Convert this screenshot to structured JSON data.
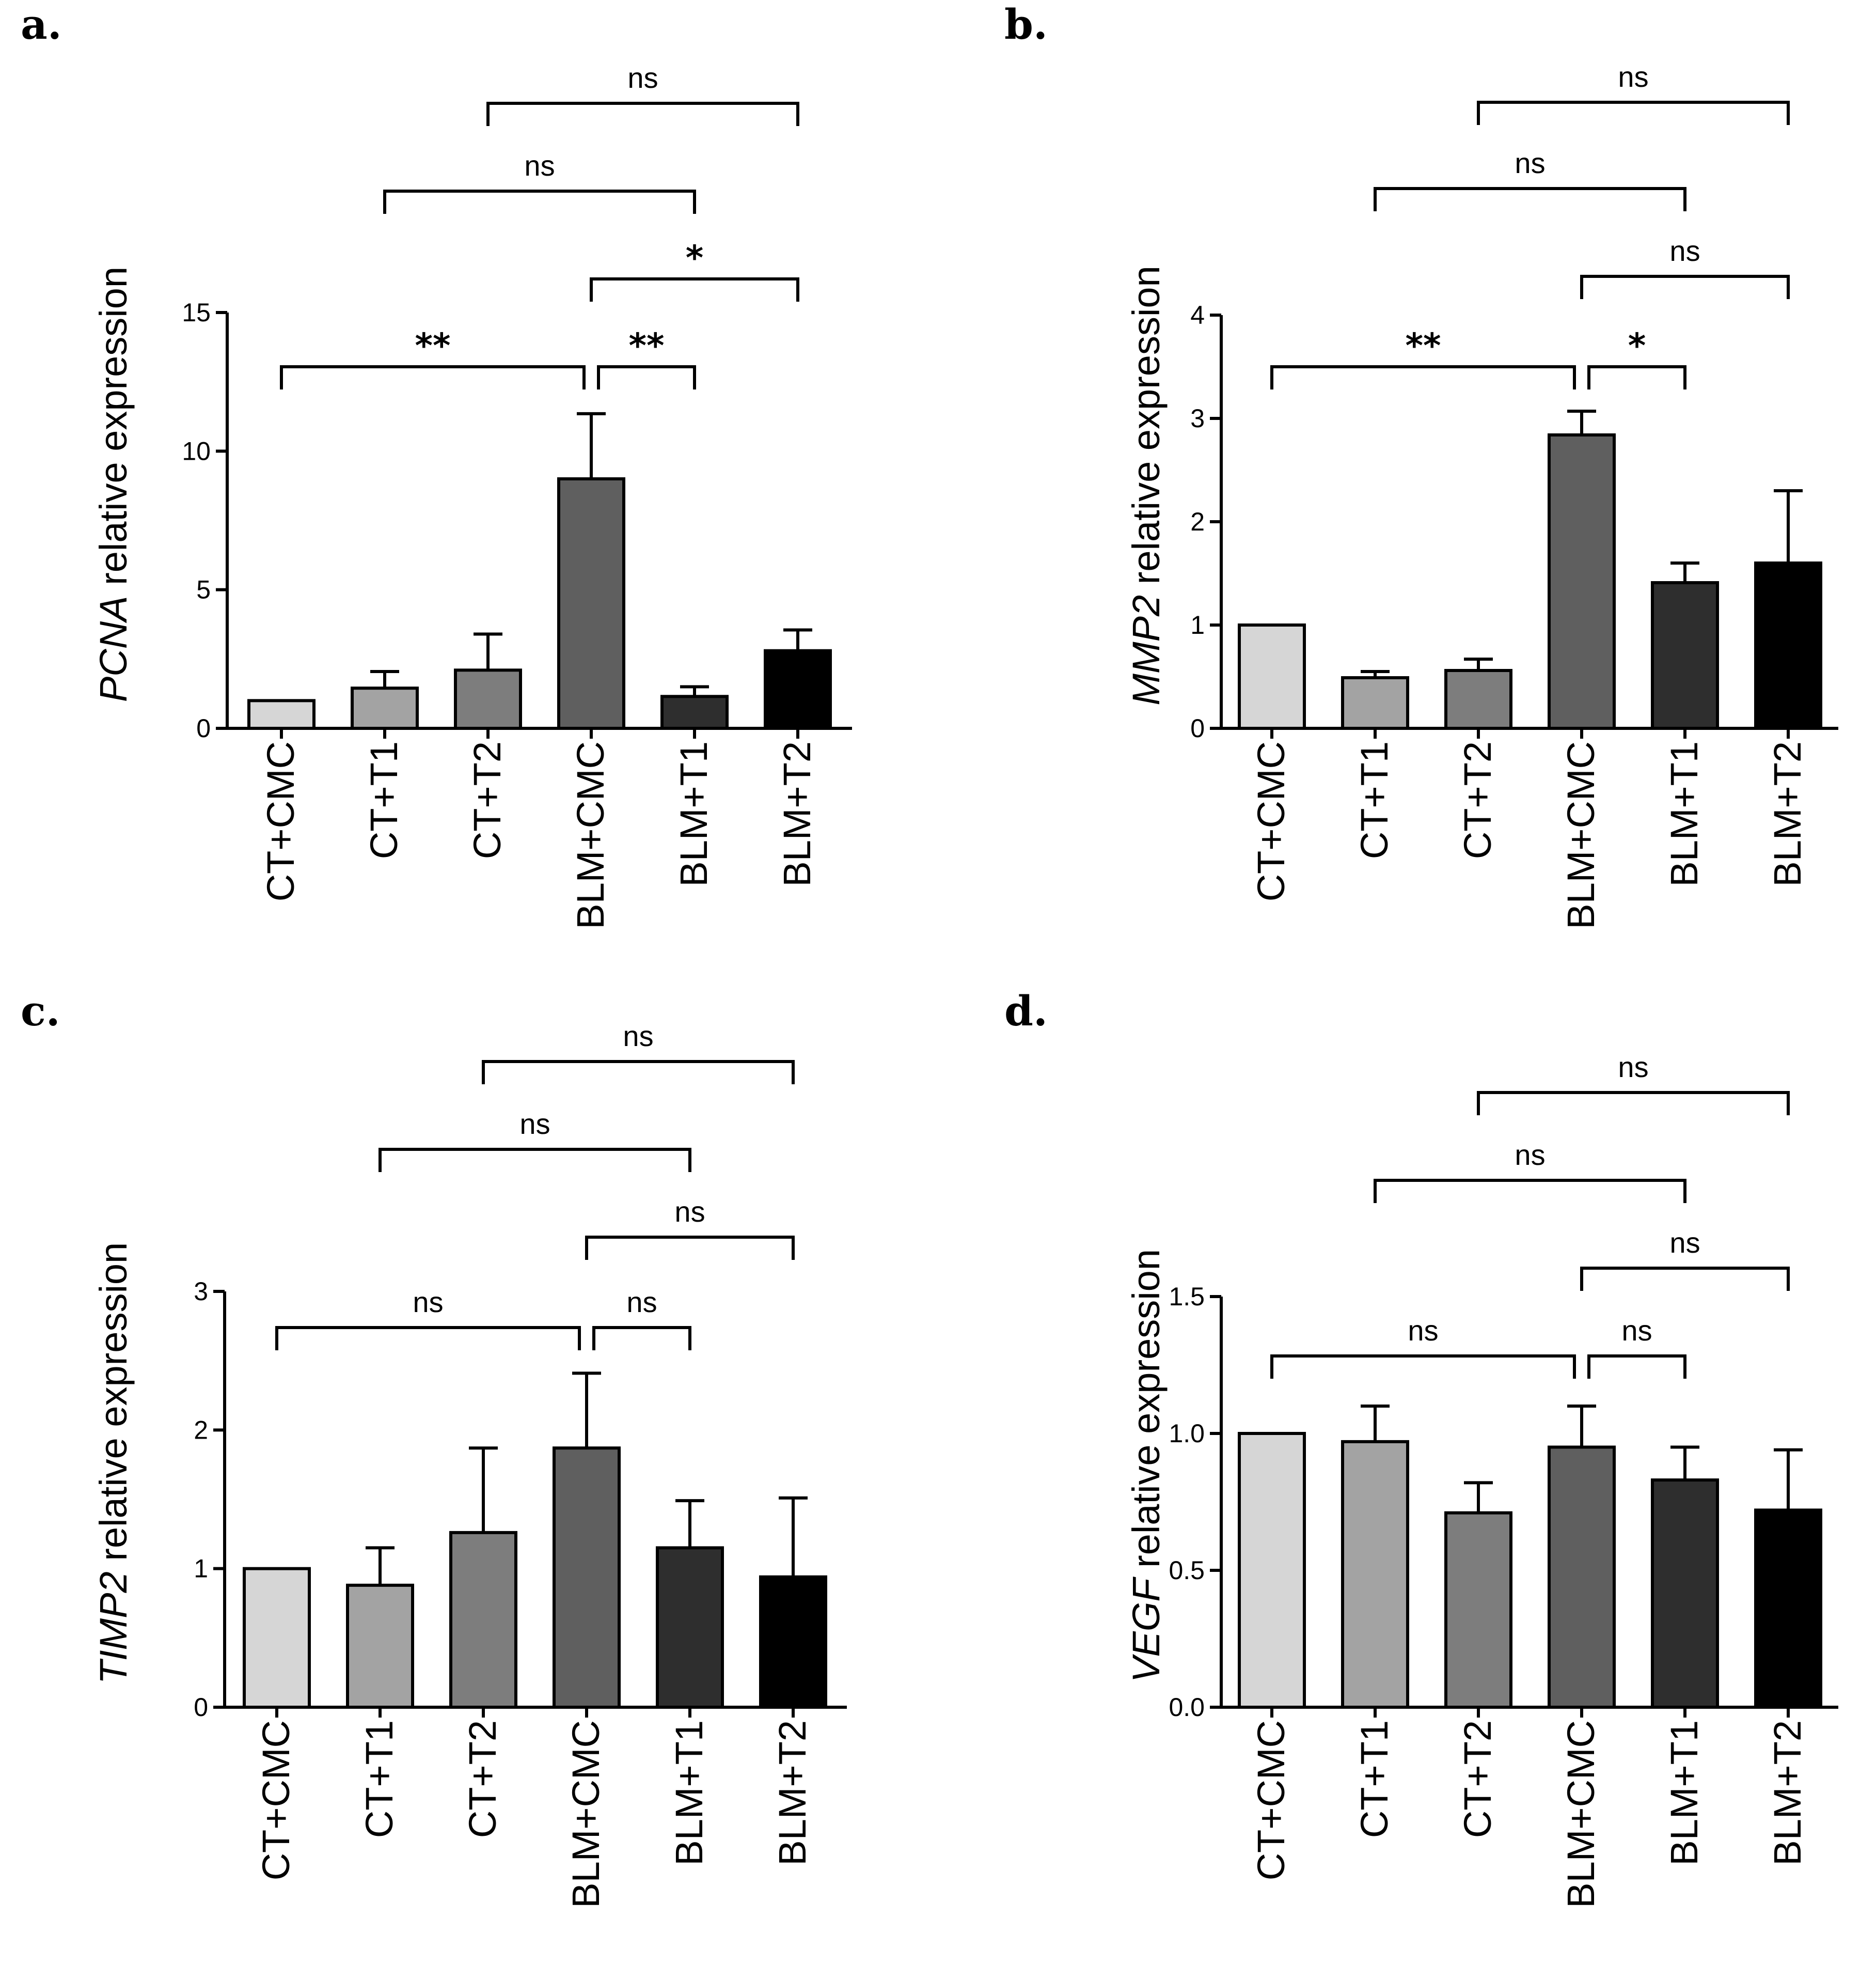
{
  "chart_data": [
    {
      "panel": "a.",
      "type": "bar",
      "gene": "PCNA",
      "ylabel_suffix": " relative expression",
      "categories": [
        "CT+CMC",
        "CT+T1",
        "CT+T2",
        "BLM+CMC",
        "BLM+T1",
        "BLM+T2"
      ],
      "values": [
        1.0,
        1.45,
        2.1,
        9.0,
        1.15,
        2.8
      ],
      "errors": [
        0,
        0.6,
        1.3,
        2.35,
        0.35,
        0.75
      ],
      "colors": [
        "#d6d6d6",
        "#a3a3a3",
        "#7d7d7d",
        "#5f5f5f",
        "#2e2e2e",
        "#000000"
      ],
      "ylim": [
        0,
        15
      ],
      "yticks": [
        "0",
        "5",
        "10",
        "15"
      ],
      "ytick_values": [
        0,
        5,
        10,
        15
      ],
      "comparisons": [
        {
          "from": 0,
          "to": 3,
          "label": "**"
        },
        {
          "from": 3,
          "to": 4,
          "label": "**"
        },
        {
          "from": 3,
          "to": 5,
          "label": "*"
        },
        {
          "from": 1,
          "to": 4,
          "label": "ns"
        },
        {
          "from": 2,
          "to": 5,
          "label": "ns"
        }
      ]
    },
    {
      "panel": "b.",
      "type": "bar",
      "gene": "MMP2",
      "ylabel_suffix": " relative expression",
      "categories": [
        "CT+CMC",
        "CT+T1",
        "CT+T2",
        "BLM+CMC",
        "BLM+T1",
        "BLM+T2"
      ],
      "values": [
        1.0,
        0.49,
        0.56,
        2.84,
        1.41,
        1.6
      ],
      "errors": [
        0,
        0.06,
        0.11,
        0.23,
        0.19,
        0.7
      ],
      "colors": [
        "#d6d6d6",
        "#a3a3a3",
        "#7d7d7d",
        "#5f5f5f",
        "#2e2e2e",
        "#000000"
      ],
      "ylim": [
        0,
        4
      ],
      "yticks": [
        "0",
        "1",
        "2",
        "3",
        "4"
      ],
      "ytick_values": [
        0,
        1,
        2,
        3,
        4
      ],
      "comparisons": [
        {
          "from": 0,
          "to": 3,
          "label": "**"
        },
        {
          "from": 3,
          "to": 4,
          "label": "*"
        },
        {
          "from": 3,
          "to": 5,
          "label": "ns"
        },
        {
          "from": 1,
          "to": 4,
          "label": "ns"
        },
        {
          "from": 2,
          "to": 5,
          "label": "ns"
        }
      ]
    },
    {
      "panel": "c.",
      "type": "bar",
      "gene": "TIMP2",
      "ylabel_suffix": " relative expression",
      "categories": [
        "CT+CMC",
        "CT+T1",
        "CT+T2",
        "BLM+CMC",
        "BLM+T1",
        "BLM+T2"
      ],
      "values": [
        1.0,
        0.88,
        1.26,
        1.87,
        1.15,
        0.94
      ],
      "errors": [
        0,
        0.27,
        0.61,
        0.54,
        0.34,
        0.57
      ],
      "colors": [
        "#d6d6d6",
        "#a3a3a3",
        "#7d7d7d",
        "#5f5f5f",
        "#2e2e2e",
        "#000000"
      ],
      "ylim": [
        0,
        3
      ],
      "yticks": [
        "0",
        "1",
        "2",
        "3"
      ],
      "ytick_values": [
        0,
        1,
        2,
        3
      ],
      "comparisons": [
        {
          "from": 0,
          "to": 3,
          "label": "ns"
        },
        {
          "from": 3,
          "to": 4,
          "label": "ns"
        },
        {
          "from": 3,
          "to": 5,
          "label": "ns"
        },
        {
          "from": 1,
          "to": 4,
          "label": "ns"
        },
        {
          "from": 2,
          "to": 5,
          "label": "ns"
        }
      ]
    },
    {
      "panel": "d.",
      "type": "bar",
      "gene": "VEGF",
      "ylabel_suffix": " relative expression",
      "categories": [
        "CT+CMC",
        "CT+T1",
        "CT+T2",
        "BLM+CMC",
        "BLM+T1",
        "BLM+T2"
      ],
      "values": [
        1.0,
        0.97,
        0.71,
        0.95,
        0.83,
        0.72
      ],
      "errors": [
        0,
        0.13,
        0.11,
        0.15,
        0.12,
        0.22
      ],
      "colors": [
        "#d6d6d6",
        "#a3a3a3",
        "#7d7d7d",
        "#5f5f5f",
        "#2e2e2e",
        "#000000"
      ],
      "ylim": [
        0,
        1.5
      ],
      "yticks": [
        "0.0",
        "0.5",
        "1.0",
        "1.5"
      ],
      "ytick_values": [
        0,
        0.5,
        1.0,
        1.5
      ],
      "comparisons": [
        {
          "from": 0,
          "to": 3,
          "label": "ns"
        },
        {
          "from": 3,
          "to": 4,
          "label": "ns"
        },
        {
          "from": 3,
          "to": 5,
          "label": "ns"
        },
        {
          "from": 1,
          "to": 4,
          "label": "ns"
        },
        {
          "from": 2,
          "to": 5,
          "label": "ns"
        }
      ]
    }
  ]
}
